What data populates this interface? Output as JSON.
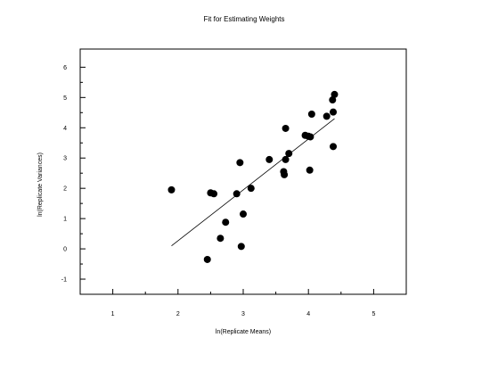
{
  "chart_data": {
    "type": "scatter",
    "title": "Fit for Estimating Weights",
    "xlabel": "ln(Replicate Means)",
    "ylabel": "ln(Replicate Variances)",
    "xlim": [
      0.5,
      5.5
    ],
    "ylim": [
      -1.5,
      6.6
    ],
    "xticks": [
      1,
      2,
      3,
      4,
      5
    ],
    "yticks": [
      -1,
      0,
      1,
      2,
      3,
      4,
      5,
      6
    ],
    "grid": false,
    "series": [
      {
        "points": [
          {
            "x": 1.9,
            "y": 1.95
          },
          {
            "x": 2.45,
            "y": -0.35
          },
          {
            "x": 2.5,
            "y": 1.85
          },
          {
            "x": 2.55,
            "y": 1.82
          },
          {
            "x": 2.65,
            "y": 0.35
          },
          {
            "x": 2.73,
            "y": 0.88
          },
          {
            "x": 2.9,
            "y": 1.82
          },
          {
            "x": 2.95,
            "y": 2.85
          },
          {
            "x": 2.97,
            "y": 0.08
          },
          {
            "x": 3.0,
            "y": 1.15
          },
          {
            "x": 3.12,
            "y": 2.0
          },
          {
            "x": 3.4,
            "y": 2.95
          },
          {
            "x": 3.62,
            "y": 2.55
          },
          {
            "x": 3.63,
            "y": 2.45
          },
          {
            "x": 3.65,
            "y": 3.98
          },
          {
            "x": 3.65,
            "y": 2.95
          },
          {
            "x": 3.7,
            "y": 3.15
          },
          {
            "x": 3.95,
            "y": 3.75
          },
          {
            "x": 4.0,
            "y": 3.72
          },
          {
            "x": 4.02,
            "y": 2.6
          },
          {
            "x": 4.03,
            "y": 3.7
          },
          {
            "x": 4.05,
            "y": 4.45
          },
          {
            "x": 4.28,
            "y": 4.38
          },
          {
            "x": 4.37,
            "y": 4.92
          },
          {
            "x": 4.38,
            "y": 3.38
          },
          {
            "x": 4.38,
            "y": 4.52
          },
          {
            "x": 4.4,
            "y": 5.1
          }
        ]
      }
    ],
    "fit_line": {
      "x": [
        1.9,
        4.4
      ],
      "y": [
        0.1,
        4.3
      ]
    }
  }
}
